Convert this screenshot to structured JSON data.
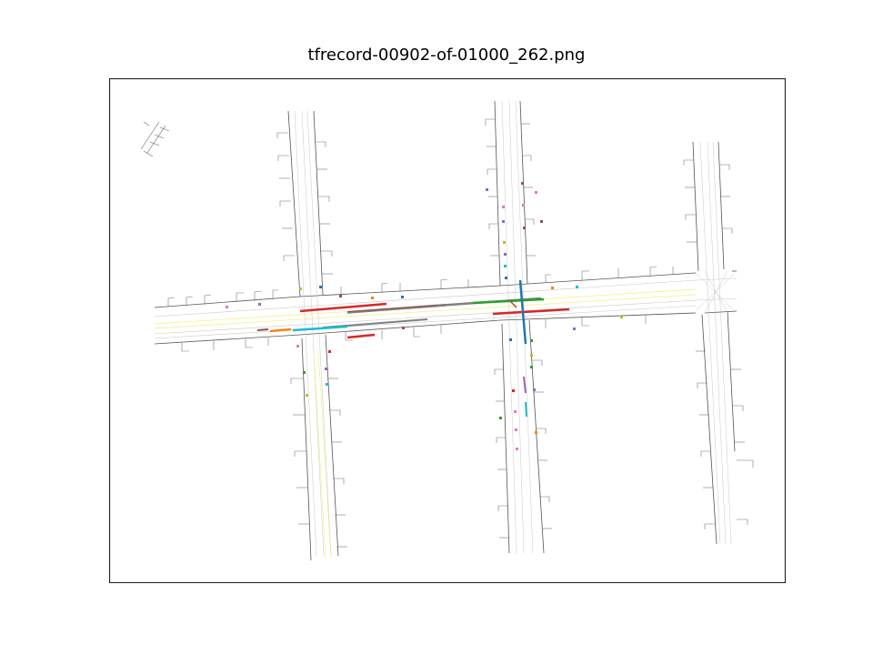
{
  "title": "tfrecord-00902-of-01000_262.png",
  "colors": {
    "road_edge": "#555555",
    "lane": "#c8c8c8",
    "lane_yellow": "#f2ee7a",
    "frame": "#000000"
  },
  "scene": {
    "description_key": "road-map-visualization",
    "roads": [
      "west-vertical-road",
      "center-vertical-road",
      "east-vertical-road",
      "main-horizontal-road"
    ],
    "agent_palette": [
      "#1f77b4",
      "#ff7f0e",
      "#2ca02c",
      "#d62728",
      "#9467bd",
      "#8c564b",
      "#e377c2",
      "#7f7f7f",
      "#bcbd22",
      "#17becf"
    ]
  }
}
